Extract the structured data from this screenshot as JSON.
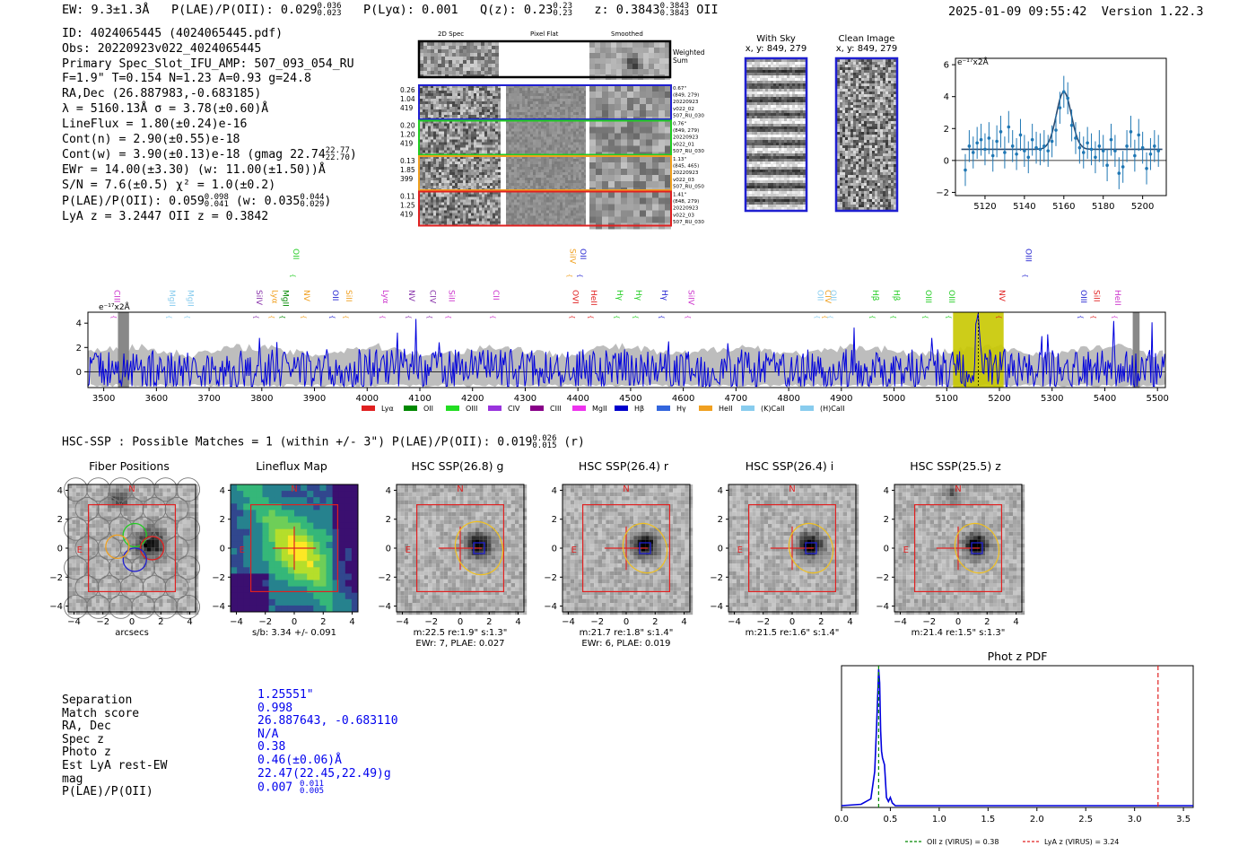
{
  "header": {
    "ew": "EW: 9.3±1.3Å",
    "plae_label": "P(LAE)/P(OII): 0.029",
    "plae_hi": "0.036",
    "plae_lo": "0.023",
    "plya": "P(Lyα): 0.001",
    "qz_label": "Q(z): 0.23",
    "qz_hi": "0.23",
    "qz_lo": "0.23",
    "z_label": "z: 0.3843",
    "z_hi": "0.3843",
    "z_lo": "0.3843",
    "line": "OII",
    "timestamp": "2025-01-09 09:55:42",
    "version": "Version 1.22.3"
  },
  "info": {
    "id": "ID: 4024065445 (4024065445.pdf)",
    "obs": "Obs: 20220923v022_4024065445",
    "primary": "Primary Spec_Slot_IFU_AMP: 507_093_054_RU",
    "params": "F=1.9\"  T=0.154  N=1.23  A=0.93  g=24.8",
    "radec": "RA,Dec (26.887983,-0.683185)",
    "lambda": "λ = 5160.13Å  σ = 3.78(±0.60)Å",
    "lineflux": "LineFlux = 1.80(±0.24)e-16",
    "contn": "Cont(n) = 2.90(±0.55)e-18",
    "contw": "Cont(w) = 3.90(±0.13)e-18 (gmag 22.74",
    "gmag_hi": "22.77",
    "gmag_lo": "22.70",
    "ewr": "EWr = 14.00(±3.30) (w: 11.00(±1.50))Å",
    "sn": "S/N = 7.6(±0.5)  χ² = 1.0(±0.2)",
    "plae": "P(LAE)/P(OII): 0.059",
    "plae_hi": "0.098",
    "plae_lo": "0.041",
    "plae_w": "(w: 0.035",
    "plae_w_hi": "0.044",
    "plae_w_lo": "0.029",
    "lya": "LyA z = 3.2447  OII z = 0.3842"
  },
  "cutouts": {
    "col_titles": [
      "2D Spec",
      "Pixel Flat",
      "Smoothed"
    ],
    "weighted": "Weighted Sum",
    "rows": [
      {
        "stats": [
          "0.26",
          "1.04",
          "419"
        ],
        "meta": [
          "0.67\"",
          "(849, 279)",
          "20220923",
          "v022_02",
          "507_RU_030"
        ],
        "color": "#1f1fd0"
      },
      {
        "stats": [
          "0.20",
          "1.20",
          "419"
        ],
        "meta": [
          "0.76\"",
          "(849, 279)",
          "20220923",
          "v022_01",
          "507_RU_030"
        ],
        "color": "#22cc22"
      },
      {
        "stats": [
          "0.13",
          "1.85",
          "399"
        ],
        "meta": [
          "1.13\"",
          "(845, 465)",
          "20220923",
          "v022_03",
          "507_RU_050"
        ],
        "color": "#f0a020"
      },
      {
        "stats": [
          "0.11",
          "1.25",
          "419"
        ],
        "meta": [
          "1.41\"",
          "(848, 279)",
          "20220923",
          "v022_03",
          "507_RU_030"
        ],
        "color": "#e02020"
      }
    ],
    "with_sky_title": "With Sky",
    "with_sky_xy": "x, y: 849, 279",
    "clean_title": "Clean Image",
    "clean_xy": "x, y: 849, 279"
  },
  "zoom_plot": {
    "unit_label": "e⁻¹⁷x2Å",
    "x_ticks": [
      "5120",
      "5140",
      "5160",
      "5180",
      "5200"
    ],
    "y_ticks": [
      "6",
      "4",
      "2",
      "0",
      "−2"
    ]
  },
  "full_spectrum": {
    "unit_label": "e⁻¹⁷x2Å",
    "x_ticks": [
      "3500",
      "3600",
      "3700",
      "3800",
      "3900",
      "4000",
      "4100",
      "4200",
      "4300",
      "4400",
      "4500",
      "4600",
      "4700",
      "4800",
      "4900",
      "5000",
      "5100",
      "5200",
      "5300",
      "5400",
      "5500"
    ],
    "y_ticks": [
      "4",
      "2",
      "0"
    ],
    "line_labels": [
      {
        "text": "CIII",
        "color": "#cc33cc"
      },
      {
        "text": "MgII",
        "color": "#88ccee"
      },
      {
        "text": "MgII",
        "color": "#88ccee"
      },
      {
        "text": "SiIV",
        "color": "#8833aa"
      },
      {
        "text": "Lyα",
        "color": "#f0a020"
      },
      {
        "text": "MgII",
        "color": "#008800"
      },
      {
        "text": "OII",
        "color": "#22cc22"
      },
      {
        "text": "NV",
        "color": "#f0a020"
      },
      {
        "text": "OII",
        "color": "#1f1fd0"
      },
      {
        "text": "SiII",
        "color": "#f0a020"
      },
      {
        "text": "Lyα",
        "color": "#cc33cc"
      },
      {
        "text": "NV",
        "color": "#8833aa"
      },
      {
        "text": "CIV",
        "color": "#8833aa"
      },
      {
        "text": "SiII",
        "color": "#cc33cc"
      },
      {
        "text": "CII",
        "color": "#cc33cc"
      },
      {
        "text": "SiIV",
        "color": "#f0a020"
      },
      {
        "text": "OVI",
        "color": "#e02020"
      },
      {
        "text": "OII",
        "color": "#1f1fd0"
      },
      {
        "text": "HeII",
        "color": "#e02020"
      },
      {
        "text": "Hγ",
        "color": "#22cc22"
      },
      {
        "text": "Hγ",
        "color": "#22cc22"
      },
      {
        "text": "Hγ",
        "color": "#1f1fd0"
      },
      {
        "text": "SiIV",
        "color": "#cc33cc"
      },
      {
        "text": "OII",
        "color": "#88ccee"
      },
      {
        "text": "CIV",
        "color": "#f0a020"
      },
      {
        "text": "OII",
        "color": "#88ccee"
      },
      {
        "text": "Hβ",
        "color": "#22cc22"
      },
      {
        "text": "Hβ",
        "color": "#22cc22"
      },
      {
        "text": "OIII",
        "color": "#22cc22"
      },
      {
        "text": "OIII",
        "color": "#22cc22"
      },
      {
        "text": "NV",
        "color": "#e02020"
      },
      {
        "text": "OIII",
        "color": "#1f1fd0"
      },
      {
        "text": "OIII",
        "color": "#1f1fd0"
      },
      {
        "text": "SiII",
        "color": "#e02020"
      },
      {
        "text": "HeII",
        "color": "#cc33cc"
      }
    ],
    "legend": [
      {
        "label": "Lyα",
        "color": "#e02020"
      },
      {
        "label": "OII",
        "color": "#008800"
      },
      {
        "label": "OIII",
        "color": "#22dd22"
      },
      {
        "label": "CIV",
        "color": "#9933dd"
      },
      {
        "label": "CIII",
        "color": "#880088"
      },
      {
        "label": "MgII",
        "color": "#ee33ee"
      },
      {
        "label": "Hβ",
        "color": "#0000cc"
      },
      {
        "label": "Hγ",
        "color": "#3366dd"
      },
      {
        "label": "HeII",
        "color": "#f0a020"
      },
      {
        "label": "(K)CaII",
        "color": "#88ccee"
      },
      {
        "label": "(H)CaII",
        "color": "#88ccee"
      }
    ]
  },
  "hsc": {
    "summary": "HSC-SSP : Possible Matches = 1 (within +/- 3\")  P(LAE)/P(OII): 0.019",
    "summary_hi": "0.026",
    "summary_lo": "0.015",
    "summary_band": "(r)",
    "panels": [
      {
        "title": "Fiber Positions",
        "caption1": "arcsecs",
        "caption2": ""
      },
      {
        "title": "Lineflux Map",
        "caption1": "s/b: 3.34 +/- 0.091",
        "caption2": ""
      },
      {
        "title": "HSC SSP(26.8) g",
        "caption1": "m:22.5  re:1.9\"  s:1.3\"",
        "caption2": "EWr: 7, PLAE: 0.027"
      },
      {
        "title": "HSC SSP(26.4) r",
        "caption1": "m:21.7  re:1.8\"  s:1.4\"",
        "caption2": "EWr: 6, PLAE: 0.019"
      },
      {
        "title": "HSC SSP(26.4) i",
        "caption1": "m:21.5  re:1.6\"  s:1.4\"",
        "caption2": ""
      },
      {
        "title": "HSC SSP(25.5) z",
        "caption1": "m:21.4  re:1.5\"  s:1.3\"",
        "caption2": ""
      }
    ],
    "axis_ticks": [
      "4",
      "2",
      "0",
      "−2",
      "−4"
    ],
    "x_ticks": [
      "−4",
      "−2",
      "0",
      "2",
      "4"
    ],
    "north": "N",
    "east": "E"
  },
  "match": {
    "labels": [
      "Separation",
      "Match score",
      "RA, Dec",
      "Spec z",
      "Photo z",
      "Est LyA rest-EW",
      "mag",
      "P(LAE)/P(OII)"
    ],
    "values": [
      "1.25551\"",
      "0.998",
      "26.887643, -0.683110",
      "N/A",
      "0.38",
      "0.46(±0.06)Å",
      "22.47(22.45,22.49)g",
      "0.007"
    ],
    "plae_hi": "0.011",
    "plae_lo": "0.005"
  },
  "photz": {
    "title": "Phot z PDF",
    "x_ticks": [
      "0.0",
      "0.5",
      "1.0",
      "1.5",
      "2.0",
      "2.5",
      "3.0",
      "3.5"
    ],
    "legend_oii": "OII z (VIRUS) = 0.38",
    "legend_lya": "LyA z (VIRUS) = 3.24"
  },
  "chart_data": [
    {
      "type": "scatter",
      "title": "",
      "xlabel": "",
      "ylabel": "e-17 x2Å",
      "xlim": [
        5105,
        5212
      ],
      "ylim": [
        -2.2,
        6.4
      ],
      "x": [
        5110,
        5112,
        5114,
        5116,
        5118,
        5120,
        5122,
        5124,
        5126,
        5128,
        5130,
        5132,
        5134,
        5136,
        5138,
        5140,
        5142,
        5144,
        5146,
        5148,
        5150,
        5152,
        5154,
        5156,
        5158,
        5160,
        5162,
        5164,
        5166,
        5168,
        5170,
        5172,
        5174,
        5176,
        5178,
        5180,
        5182,
        5184,
        5186,
        5188,
        5190,
        5192,
        5194,
        5196,
        5198,
        5200,
        5202,
        5204,
        5206,
        5208
      ],
      "y": [
        -0.6,
        0.9,
        0.5,
        1.1,
        1.3,
        0.7,
        1.4,
        0.3,
        1.2,
        1.8,
        0.5,
        2.1,
        0.9,
        0.4,
        1.6,
        0.6,
        0.2,
        1.3,
        0.8,
        0.7,
        0.9,
        0.6,
        1.2,
        1.9,
        3.3,
        4.3,
        3.9,
        2.2,
        1.4,
        0.8,
        0.5,
        1.1,
        0.7,
        0.2,
        0.9,
        0.6,
        -0.3,
        1.3,
        0.6,
        -0.8,
        -0.4,
        0.9,
        1.8,
        0.3,
        1.6,
        0.8,
        -0.5,
        0.4,
        0.9,
        0.6
      ],
      "err": 1.0,
      "model": "gaussian peak 4.2 at 5160, sigma 3.78, continuum 0.7"
    },
    {
      "type": "line",
      "title": "Phot z PDF",
      "xlabel": "",
      "ylabel": "",
      "xlim": [
        0.0,
        3.6
      ],
      "x": [
        0.0,
        0.2,
        0.3,
        0.34,
        0.36,
        0.38,
        0.39,
        0.4,
        0.41,
        0.42,
        0.44,
        0.46,
        0.48,
        0.5,
        0.52,
        0.55,
        0.6,
        1.0,
        2.0,
        3.0,
        3.6
      ],
      "y": [
        0.0,
        0.01,
        0.05,
        0.25,
        0.6,
        1.0,
        0.9,
        0.55,
        0.4,
        0.35,
        0.3,
        0.06,
        0.03,
        0.06,
        0.02,
        0.0,
        0.0,
        0.0,
        0.0,
        0.0,
        0.0
      ],
      "vlines": [
        {
          "x": 0.38,
          "label": "OII z (VIRUS) = 0.38",
          "color": "#008800"
        },
        {
          "x": 3.24,
          "label": "LyA z (VIRUS) = 3.24",
          "color": "#e02020"
        }
      ]
    }
  ]
}
